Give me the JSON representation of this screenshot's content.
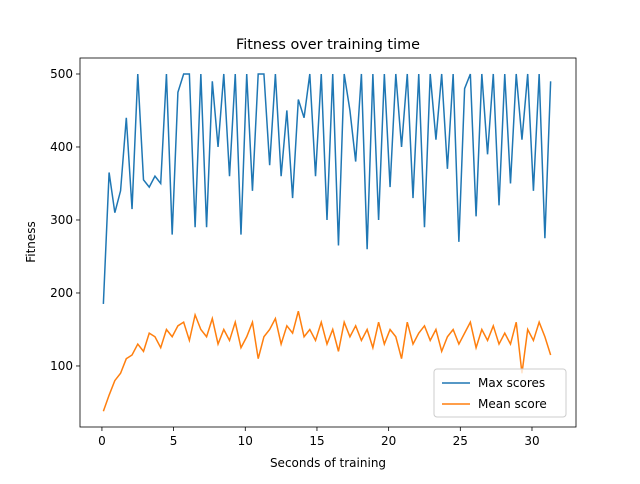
{
  "chart_data": {
    "type": "line",
    "title": "Fitness over training time",
    "x_label": "Seconds of training",
    "y_label": "Fitness",
    "x": [
      0.1,
      0.5,
      0.9,
      1.3,
      1.7,
      2.1,
      2.5,
      2.9,
      3.3,
      3.7,
      4.1,
      4.5,
      4.9,
      5.3,
      5.7,
      6.1,
      6.5,
      6.9,
      7.3,
      7.7,
      8.1,
      8.5,
      8.9,
      9.3,
      9.7,
      10.1,
      10.5,
      10.9,
      11.3,
      11.7,
      12.1,
      12.5,
      12.9,
      13.3,
      13.7,
      14.1,
      14.5,
      14.9,
      15.3,
      15.7,
      16.1,
      16.5,
      16.9,
      17.3,
      17.7,
      18.1,
      18.5,
      18.9,
      19.3,
      19.7,
      20.1,
      20.5,
      20.9,
      21.3,
      21.7,
      22.1,
      22.5,
      22.9,
      23.3,
      23.7,
      24.1,
      24.5,
      24.9,
      25.3,
      25.7,
      26.1,
      26.5,
      26.9,
      27.3,
      27.7,
      28.1,
      28.5,
      28.9,
      29.3,
      29.7,
      30.1,
      30.5,
      30.9,
      31.3
    ],
    "series": [
      {
        "name": "Max scores",
        "color": "#1f77b4",
        "values": [
          185,
          365,
          310,
          340,
          440,
          315,
          500,
          355,
          345,
          360,
          350,
          500,
          280,
          475,
          500,
          500,
          290,
          500,
          290,
          490,
          400,
          500,
          360,
          500,
          280,
          500,
          340,
          500,
          500,
          375,
          500,
          360,
          450,
          330,
          465,
          440,
          500,
          360,
          500,
          300,
          500,
          265,
          500,
          450,
          380,
          500,
          260,
          500,
          300,
          500,
          345,
          500,
          400,
          500,
          330,
          500,
          290,
          500,
          410,
          500,
          370,
          500,
          270,
          480,
          500,
          305,
          500,
          390,
          500,
          320,
          500,
          350,
          500,
          410,
          500,
          340,
          500,
          275,
          490
        ]
      },
      {
        "name": "Mean score",
        "color": "#ff7f0e",
        "values": [
          38,
          60,
          80,
          90,
          110,
          115,
          130,
          120,
          145,
          140,
          125,
          150,
          140,
          155,
          160,
          135,
          170,
          150,
          140,
          165,
          130,
          150,
          135,
          160,
          125,
          140,
          160,
          110,
          140,
          150,
          165,
          130,
          155,
          145,
          175,
          140,
          150,
          135,
          160,
          130,
          150,
          120,
          160,
          140,
          155,
          135,
          150,
          125,
          160,
          130,
          150,
          140,
          110,
          160,
          130,
          145,
          155,
          135,
          150,
          120,
          140,
          150,
          130,
          145,
          160,
          125,
          150,
          135,
          155,
          130,
          145,
          130,
          160,
          90,
          150,
          135,
          160,
          140,
          115
        ]
      }
    ],
    "xlim": [
      -1.53,
      33.07
    ],
    "ylim": [
      16.4,
      521.9
    ],
    "xticks": [
      0,
      5,
      10,
      15,
      20,
      25,
      30
    ],
    "yticks": [
      100,
      200,
      300,
      400,
      500
    ],
    "legend": "lower right"
  }
}
